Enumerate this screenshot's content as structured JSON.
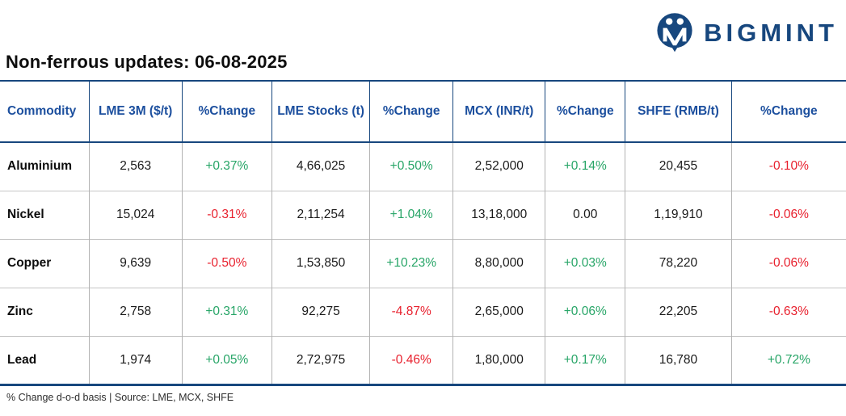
{
  "brand": {
    "name": "BIGMINT"
  },
  "colors": {
    "navy": "#17477e",
    "header_blue": "#1c4f9e",
    "green": "#27a567",
    "red": "#e8212e"
  },
  "footnote": "% Change d-o-d basis | Source: LME, MCX, SHFE",
  "chart_data": {
    "type": "table",
    "title": "Non-ferrous updates: 06-08-2025",
    "columns": [
      {
        "label": "Commodity",
        "key": "commodity",
        "kind": "name",
        "align": "left"
      },
      {
        "label": "LME 3M ($/t)",
        "key": "lme_3m",
        "kind": "value"
      },
      {
        "label": "%Change",
        "key": "lme_3m_change",
        "kind": "change"
      },
      {
        "label": "LME Stocks (t)",
        "key": "lme_stocks",
        "kind": "value"
      },
      {
        "label": "%Change",
        "key": "lme_stocks_change",
        "kind": "change"
      },
      {
        "label": "MCX (INR/t)",
        "key": "mcx",
        "kind": "value"
      },
      {
        "label": "%Change",
        "key": "mcx_change",
        "kind": "change"
      },
      {
        "label": "SHFE (RMB/t)",
        "key": "shfe",
        "kind": "value"
      },
      {
        "label": "%Change",
        "key": "shfe_change",
        "kind": "change"
      }
    ],
    "rows": [
      {
        "commodity": "Aluminium",
        "lme_3m": "2,563",
        "lme_3m_change": "+0.37%",
        "lme_stocks": "4,66,025",
        "lme_stocks_change": "+0.50%",
        "mcx": "2,52,000",
        "mcx_change": "+0.14%",
        "shfe": "20,455",
        "shfe_change": "-0.10%"
      },
      {
        "commodity": "Nickel",
        "lme_3m": "15,024",
        "lme_3m_change": "-0.31%",
        "lme_stocks": "2,11,254",
        "lme_stocks_change": "+1.04%",
        "mcx": "13,18,000",
        "mcx_change": "0.00",
        "shfe": "1,19,910",
        "shfe_change": "-0.06%"
      },
      {
        "commodity": "Copper",
        "lme_3m": "9,639",
        "lme_3m_change": "-0.50%",
        "lme_stocks": "1,53,850",
        "lme_stocks_change": "+10.23%",
        "mcx": "8,80,000",
        "mcx_change": "+0.03%",
        "shfe": "78,220",
        "shfe_change": "-0.06%"
      },
      {
        "commodity": "Zinc",
        "lme_3m": "2,758",
        "lme_3m_change": "+0.31%",
        "lme_stocks": "92,275",
        "lme_stocks_change": "-4.87%",
        "mcx": "2,65,000",
        "mcx_change": "+0.06%",
        "shfe": "22,205",
        "shfe_change": "-0.63%"
      },
      {
        "commodity": "Lead",
        "lme_3m": "1,974",
        "lme_3m_change": "+0.05%",
        "lme_stocks": "2,72,975",
        "lme_stocks_change": "-0.46%",
        "mcx": "1,80,000",
        "mcx_change": "+0.17%",
        "shfe": "16,780",
        "shfe_change": "+0.72%"
      }
    ]
  }
}
